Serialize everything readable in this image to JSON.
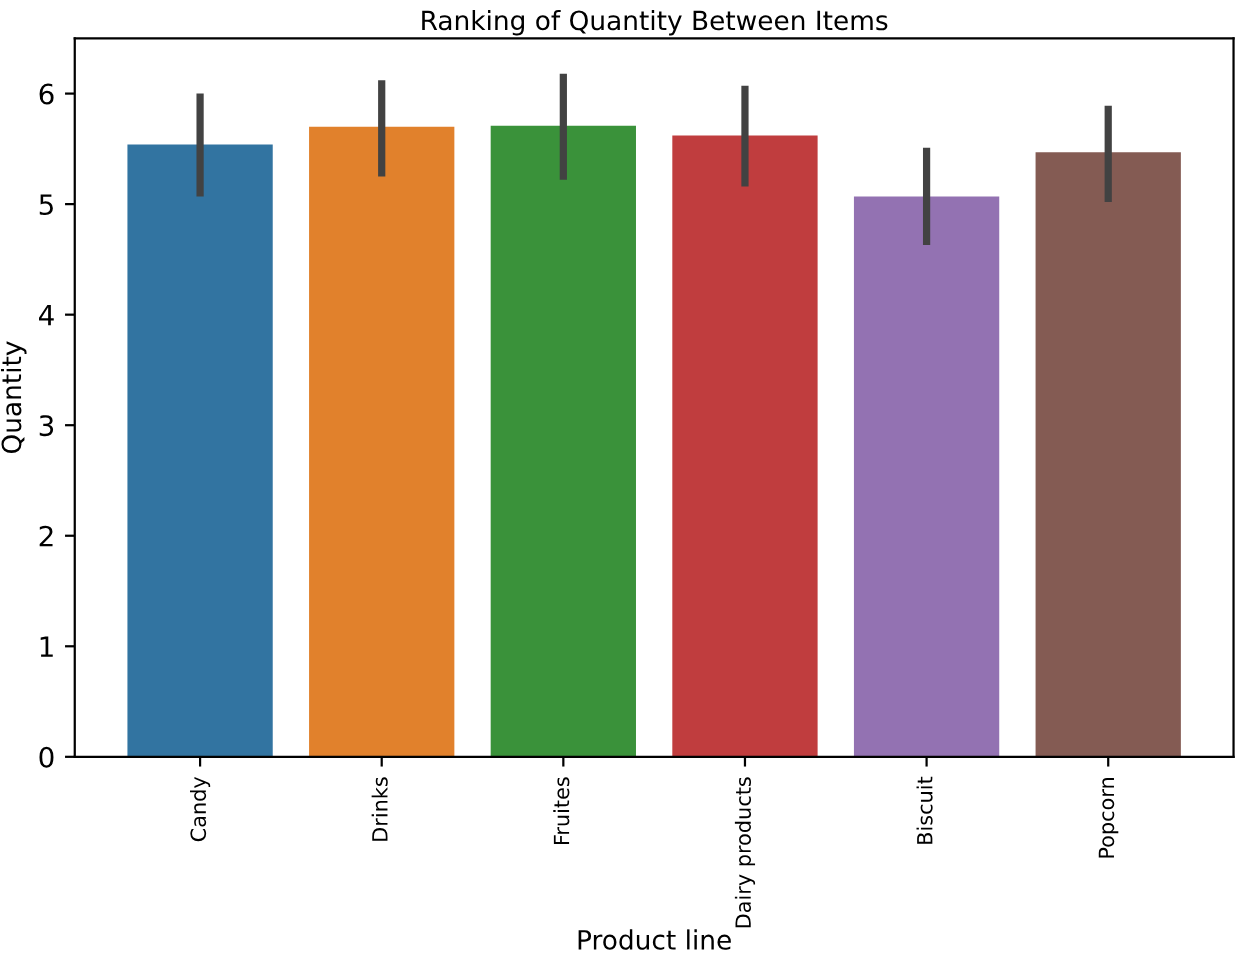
{
  "chart_data": {
    "type": "bar",
    "title": "Ranking of Quantity Between Items",
    "xlabel": "Product line",
    "ylabel": "Quantity",
    "categories": [
      "Candy",
      "Drinks",
      "Fruites",
      "Dairy products",
      "Biscuit",
      "Popcorn"
    ],
    "values": [
      5.54,
      5.7,
      5.71,
      5.62,
      5.07,
      5.47
    ],
    "colors": [
      "#3274a1",
      "#e1812c",
      "#3a923a",
      "#c03d3e",
      "#9372b2",
      "#845b53"
    ],
    "errors": [
      [
        5.07,
        6.0
      ],
      [
        5.25,
        6.12
      ],
      [
        5.22,
        6.18
      ],
      [
        5.16,
        6.07
      ],
      [
        4.63,
        5.51
      ],
      [
        5.02,
        5.89
      ]
    ],
    "ylim": [
      0,
      6.5
    ],
    "yticks": [
      0,
      1,
      2,
      3,
      4,
      5,
      6
    ],
    "grid": false,
    "legend": false
  }
}
